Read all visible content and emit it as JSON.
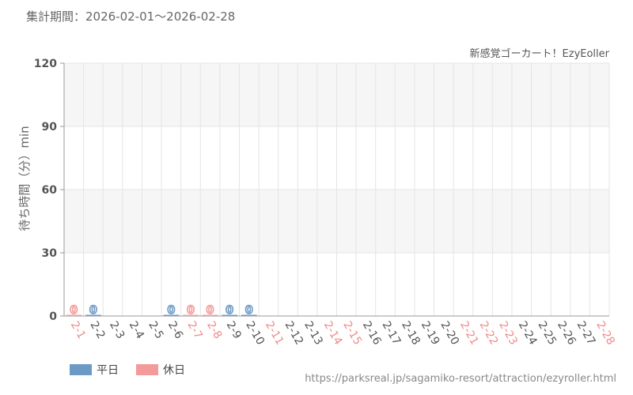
{
  "header": {
    "aggregation_period": "集計期間：2026-02-01～2026-02-28",
    "attraction_name": "新感覚ゴーカート！EzyEoller"
  },
  "footer": {
    "source_url": "https://parksreal.jp/sagamiko-resort/attraction/ezyroller.html"
  },
  "legend": {
    "weekday": "平日",
    "holiday": "休日"
  },
  "colors": {
    "weekday": "#6b9ac4",
    "holiday": "#f59a9a",
    "band": "#f6f6f6",
    "grid": "#e4e4e4"
  },
  "chart_data": {
    "type": "bar",
    "ylabel": "待ち時間（分）min",
    "ylim": [
      0,
      120
    ],
    "yticks": [
      0,
      30,
      60,
      90,
      120
    ],
    "categories": [
      "2-1",
      "2-2",
      "2-3",
      "2-4",
      "2-5",
      "2-6",
      "2-7",
      "2-8",
      "2-9",
      "2-10",
      "2-11",
      "2-12",
      "2-13",
      "2-14",
      "2-15",
      "2-16",
      "2-17",
      "2-18",
      "2-19",
      "2-20",
      "2-21",
      "2-22",
      "2-23",
      "2-24",
      "2-25",
      "2-26",
      "2-27",
      "2-28"
    ],
    "day_types": [
      "holiday",
      "weekday",
      "weekday",
      "weekday",
      "weekday",
      "weekday",
      "holiday",
      "holiday",
      "weekday",
      "weekday",
      "holiday",
      "weekday",
      "weekday",
      "holiday",
      "holiday",
      "weekday",
      "weekday",
      "weekday",
      "weekday",
      "weekday",
      "holiday",
      "holiday",
      "holiday",
      "weekday",
      "weekday",
      "weekday",
      "weekday",
      "holiday"
    ],
    "values": [
      0,
      0,
      null,
      null,
      null,
      0,
      0,
      0,
      0,
      0,
      null,
      null,
      null,
      null,
      null,
      null,
      null,
      null,
      null,
      null,
      null,
      null,
      null,
      null,
      null,
      null,
      null,
      null
    ],
    "series": [
      {
        "name": "平日",
        "color": "#6b9ac4"
      },
      {
        "name": "休日",
        "color": "#f59a9a"
      }
    ]
  }
}
